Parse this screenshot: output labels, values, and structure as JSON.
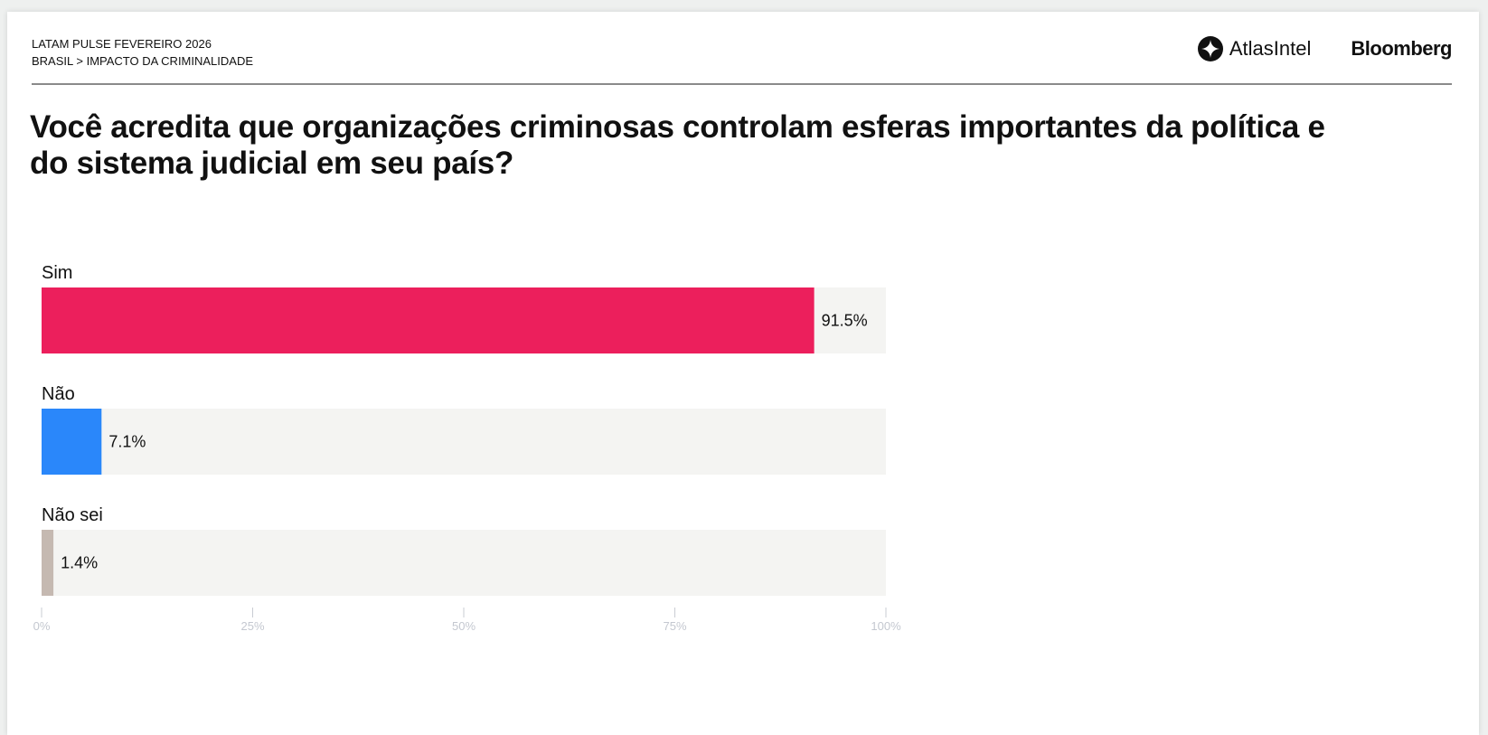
{
  "header": {
    "line1": "LATAM PULSE FEVEREIRO 2026",
    "line2": "BRASIL > IMPACTO DA CRIMINALIDADE",
    "logo_atlas": "AtlasIntel",
    "logo_bloomberg": "Bloomberg"
  },
  "chart_data": {
    "type": "bar",
    "orientation": "horizontal",
    "title": "Você acredita que organizações criminosas controlam esferas importantes da política e do sistema judicial em seu país?",
    "categories": [
      "Sim",
      "Não",
      "Não sei"
    ],
    "values": [
      91.5,
      7.1,
      1.4
    ],
    "value_labels": [
      "91.5%",
      "7.1%",
      "1.4%"
    ],
    "colors": [
      "#EC1F5C",
      "#2A87FA",
      "#C5B9B1"
    ],
    "track_color": "#F4F4F2",
    "xlim": [
      0,
      100
    ],
    "xticks": [
      0,
      25,
      50,
      75,
      100
    ],
    "xtick_labels": [
      "0%",
      "25%",
      "50%",
      "75%",
      "100%"
    ],
    "grid": false
  }
}
